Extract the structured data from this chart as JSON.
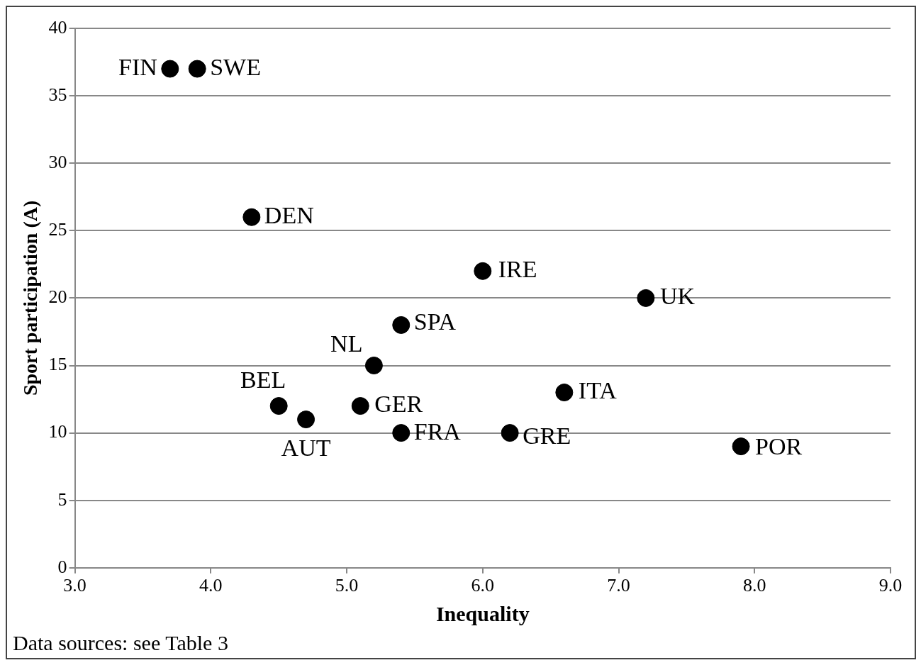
{
  "chart_data": {
    "type": "scatter",
    "xlabel": "Inequality",
    "ylabel": "Sport participation (A)",
    "x": [
      3.7,
      3.9,
      4.3,
      6.0,
      7.2,
      5.4,
      5.2,
      4.5,
      4.7,
      5.1,
      5.4,
      6.6,
      6.2,
      7.9
    ],
    "values": [
      37,
      37,
      26,
      22,
      20,
      18,
      15,
      12,
      11,
      12,
      10,
      13,
      10,
      9
    ],
    "color": "#000000",
    "marker": "circle",
    "xlim": [
      3.0,
      9.0
    ],
    "xticks": [
      {
        "value": 3,
        "label": "3.0"
      },
      {
        "value": 4,
        "label": "4.0"
      },
      {
        "value": 5,
        "label": "5.0"
      },
      {
        "value": 6,
        "label": "6.0"
      },
      {
        "value": 7,
        "label": "7.0"
      },
      {
        "value": 8,
        "label": "8.0"
      },
      {
        "value": 9,
        "label": "9.0"
      }
    ],
    "ylim": [
      0,
      40
    ],
    "yticks": [
      0,
      5,
      10,
      15,
      20,
      25,
      30,
      35,
      40
    ],
    "grid": "y",
    "legend": false,
    "annotations": [
      {
        "text": "FIN",
        "x": 3.7,
        "y": 37
      },
      {
        "text": "SWE",
        "x": 3.9,
        "y": 37
      },
      {
        "text": "DEN",
        "x": 4.3,
        "y": 26
      },
      {
        "text": "IRE",
        "x": 6.0,
        "y": 22
      },
      {
        "text": "UK",
        "x": 7.2,
        "y": 20
      },
      {
        "text": "SPA",
        "x": 5.4,
        "y": 18
      },
      {
        "text": "NL",
        "x": 5.2,
        "y": 15
      },
      {
        "text": "BEL",
        "x": 4.5,
        "y": 12
      },
      {
        "text": "AUT",
        "x": 4.7,
        "y": 11
      },
      {
        "text": "GER",
        "x": 5.1,
        "y": 12
      },
      {
        "text": "FRA",
        "x": 5.4,
        "y": 10
      },
      {
        "text": "ITA",
        "x": 6.6,
        "y": 13
      },
      {
        "text": "GRE",
        "x": 6.2,
        "y": 10
      },
      {
        "text": "POR",
        "x": 7.9,
        "y": 9
      },
      "Data sources: see Table 3"
    ]
  }
}
